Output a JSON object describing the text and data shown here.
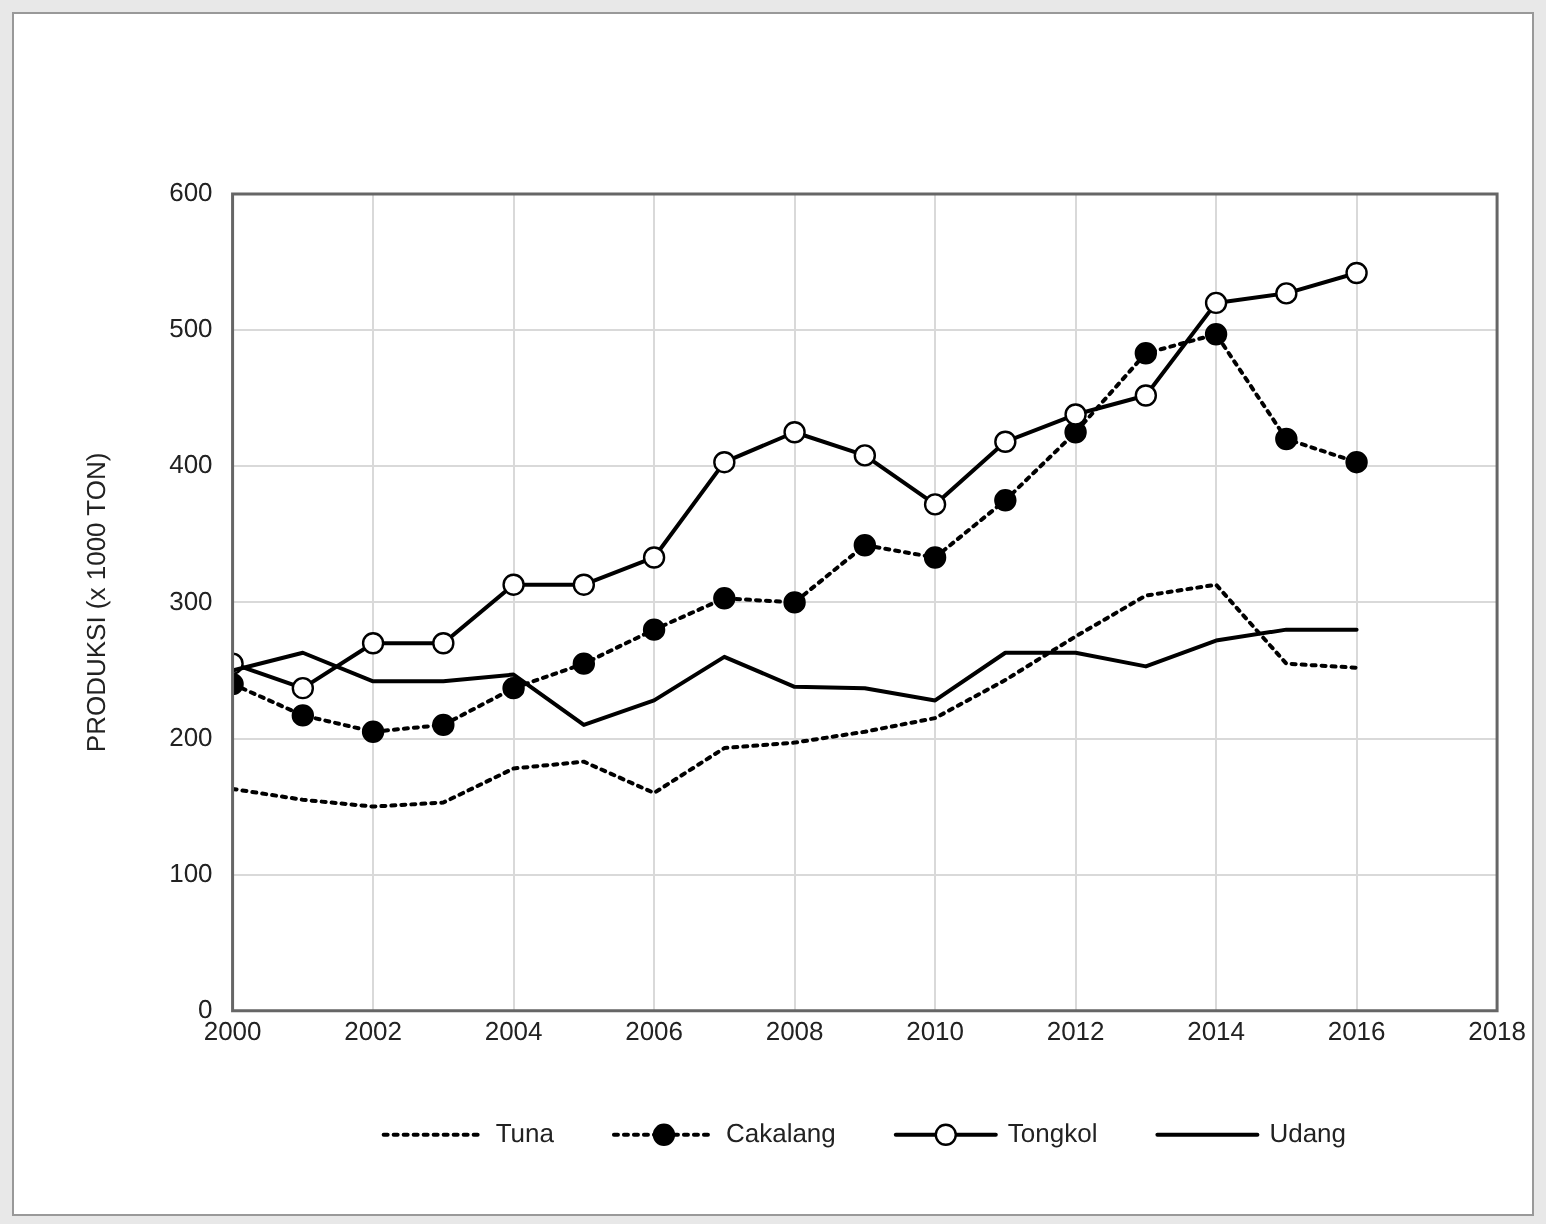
{
  "chart_data": {
    "type": "line",
    "ylabel": "PRODUKSI (x 1000 TON)",
    "x": [
      2000,
      2001,
      2002,
      2003,
      2004,
      2005,
      2006,
      2007,
      2008,
      2009,
      2010,
      2011,
      2012,
      2013,
      2014,
      2015,
      2016
    ],
    "series": [
      {
        "name": "Tuna",
        "color": "#000000",
        "line_style": "dotted",
        "marker": "none",
        "values": [
          163,
          155,
          150,
          153,
          178,
          183,
          160,
          193,
          197,
          205,
          215,
          243,
          275,
          305,
          313,
          255,
          252
        ]
      },
      {
        "name": "Cakalang",
        "color": "#000000",
        "line_style": "dotted",
        "marker": "circle",
        "values": [
          240,
          217,
          205,
          210,
          237,
          255,
          280,
          303,
          300,
          342,
          333,
          375,
          425,
          483,
          497,
          420,
          403
        ]
      },
      {
        "name": "Tongkol",
        "color": "#000000",
        "line_style": "solid",
        "marker": "circle",
        "values": [
          255,
          237,
          270,
          270,
          313,
          313,
          333,
          403,
          425,
          408,
          372,
          418,
          438,
          452,
          520,
          527,
          542
        ]
      },
      {
        "name": "Udang",
        "color": "#000000",
        "line_style": "solid",
        "marker": "none",
        "values": [
          250,
          263,
          242,
          242,
          247,
          210,
          228,
          260,
          238,
          237,
          228,
          263,
          263,
          253,
          272,
          280,
          280
        ]
      }
    ],
    "xlim": [
      2000,
      2018
    ],
    "xticks": [
      2000,
      2002,
      2004,
      2006,
      2008,
      2010,
      2012,
      2014,
      2016,
      2018
    ],
    "ylim": [
      0,
      600
    ],
    "yticks": [
      0,
      100,
      200,
      300,
      400,
      500,
      600
    ],
    "grid": true,
    "legend": "bottom"
  }
}
